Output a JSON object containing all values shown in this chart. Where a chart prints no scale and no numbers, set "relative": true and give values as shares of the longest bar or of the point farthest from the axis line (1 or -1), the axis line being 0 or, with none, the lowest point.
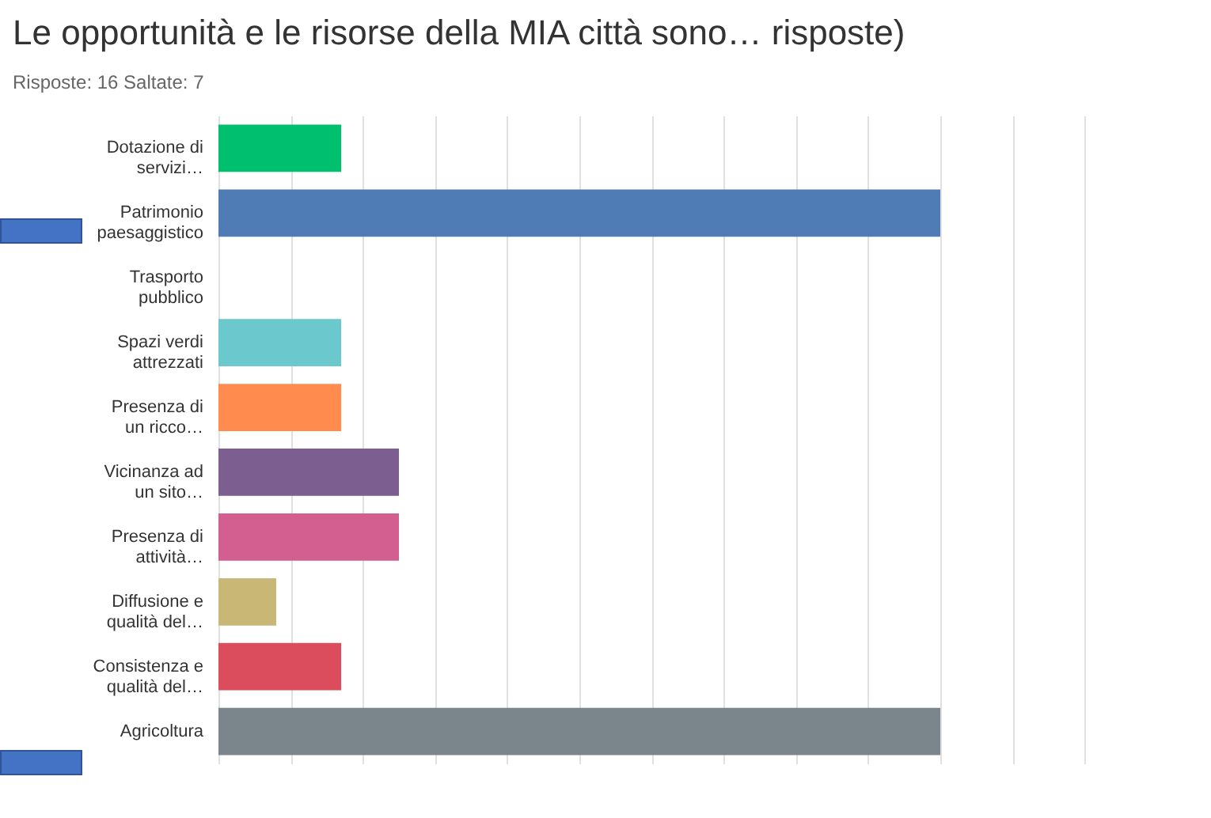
{
  "chart_data": {
    "type": "bar",
    "orientation": "horizontal",
    "relative": true,
    "grid": "x",
    "title": "Le opportunità e le risorse della MIA città sono… risposte)",
    "subtitle": "Risposte: 16    Saltate: 7",
    "categories": [
      "Dotazione di servizi…",
      "Patrimonio paesaggistico",
      "Trasporto pubblico",
      "Spazi verdi attrezzati",
      "Presenza di un ricco…",
      "Vicinanza ad un sito…",
      "Presenza di attività…",
      "Diffusione e qualità del…",
      "Consistenza e qualità del…",
      "Agricoltura"
    ],
    "values": [
      0.17,
      1,
      0,
      0.17,
      0.17,
      0.25,
      0.25,
      0.08,
      0.17,
      1
    ],
    "colors": [
      "#00bf6f",
      "#507cb6",
      "#507cb6",
      "#6bc8cd",
      "#ff8b4f",
      "#7d5e90",
      "#d25f90",
      "#c9b776",
      "#db4d5c",
      "#7b868c"
    ]
  }
}
